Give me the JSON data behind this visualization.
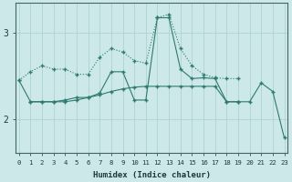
{
  "xlabel": "Humidex (Indice chaleur)",
  "x_values": [
    0,
    1,
    2,
    3,
    4,
    5,
    6,
    7,
    8,
    9,
    10,
    11,
    12,
    13,
    14,
    15,
    16,
    17,
    18,
    19,
    20,
    21,
    22,
    23
  ],
  "line1_dotted": [
    2.45,
    2.55,
    2.62,
    2.58,
    2.58,
    2.52,
    2.52,
    2.72,
    2.82,
    2.78,
    2.68,
    2.65,
    3.18,
    3.22,
    2.82,
    2.62,
    2.52,
    2.48,
    2.47,
    2.47,
    null,
    null,
    null,
    null
  ],
  "line2_solid": [
    2.45,
    2.2,
    2.2,
    2.2,
    2.22,
    2.25,
    2.25,
    2.3,
    2.55,
    2.55,
    2.22,
    2.22,
    3.18,
    3.18,
    2.58,
    2.47,
    2.48,
    2.47,
    2.2,
    2.2,
    2.2,
    2.42,
    2.32,
    1.78
  ],
  "line3_diagonal": [
    2.45,
    null,
    null,
    null,
    null,
    null,
    null,
    null,
    null,
    null,
    null,
    null,
    null,
    null,
    null,
    null,
    null,
    null,
    null,
    null,
    null,
    null,
    null,
    1.78
  ],
  "line4_solid_flat": [
    null,
    2.2,
    2.2,
    2.2,
    2.2,
    2.22,
    2.25,
    2.28,
    2.32,
    2.35,
    2.37,
    2.38,
    2.38,
    2.38,
    2.38,
    2.38,
    2.38,
    2.38,
    2.2,
    2.2,
    null,
    null,
    null,
    null
  ],
  "background_color": "#cce8e8",
  "line_color": "#2d7a70",
  "grid_color": "#aacece",
  "ylim": [
    1.6,
    3.35
  ],
  "yticks": [
    2,
    3
  ],
  "xlim": [
    -0.3,
    23.3
  ],
  "figsize": [
    3.2,
    2.0
  ],
  "dpi": 100
}
